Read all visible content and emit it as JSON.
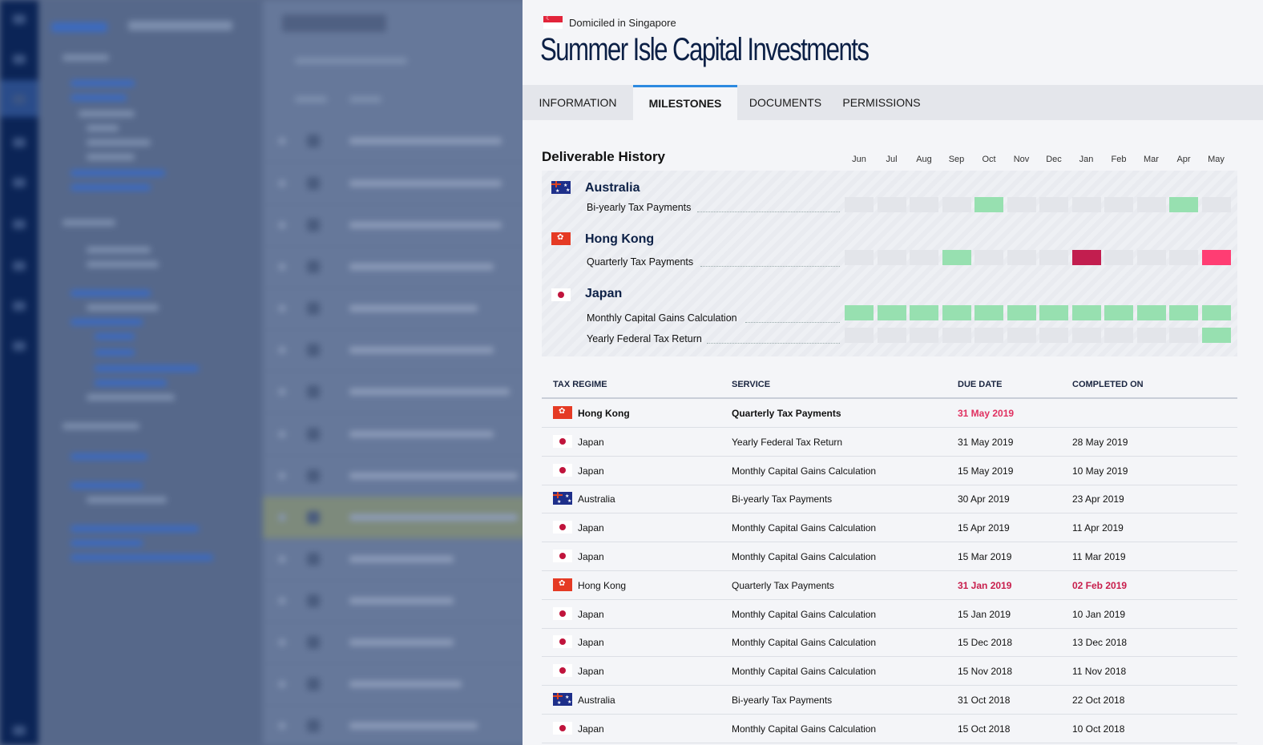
{
  "panel": {
    "domicile": "Domiciled in Singapore",
    "title": "Summer Isle Capital Investments",
    "tabs": [
      {
        "label": "INFORMATION",
        "active": false
      },
      {
        "label": "MILESTONES",
        "active": true
      },
      {
        "label": "DOCUMENTS",
        "active": false
      },
      {
        "label": "PERMISSIONS",
        "active": false
      }
    ]
  },
  "history": {
    "title": "Deliverable History",
    "months": [
      "Jun",
      "Jul",
      "Aug",
      "Sep",
      "Oct",
      "Nov",
      "Dec",
      "Jan",
      "Feb",
      "Mar",
      "Apr",
      "May"
    ],
    "regions": [
      {
        "name": "Australia",
        "flag": "flag-australia",
        "services": [
          {
            "name": "Bi-yearly Tax Payments",
            "status": [
              "empty",
              "empty",
              "empty",
              "empty",
              "green",
              "empty",
              "empty",
              "empty",
              "empty",
              "empty",
              "green",
              "empty"
            ]
          }
        ]
      },
      {
        "name": "Hong Kong",
        "flag": "flag-hong-kong",
        "services": [
          {
            "name": "Quarterly Tax Payments",
            "status": [
              "empty",
              "empty",
              "empty",
              "green",
              "empty",
              "empty",
              "empty",
              "late",
              "empty",
              "empty",
              "empty",
              "overdue"
            ]
          }
        ]
      },
      {
        "name": "Japan",
        "flag": "flag-japan",
        "services": [
          {
            "name": "Monthly Capital Gains Calculation",
            "status": [
              "green",
              "green",
              "green",
              "green",
              "green",
              "green",
              "green",
              "green",
              "green",
              "green",
              "green",
              "green"
            ]
          },
          {
            "name": "Yearly Federal Tax Return",
            "status": [
              "empty",
              "empty",
              "empty",
              "empty",
              "empty",
              "empty",
              "empty",
              "empty",
              "empty",
              "empty",
              "empty",
              "green"
            ]
          }
        ]
      }
    ],
    "colors": {
      "empty": "#e3e5ea",
      "green": "#97e0b0",
      "late": "#c21e4f",
      "overdue": "#ff3d73"
    }
  },
  "table": {
    "headers": [
      "TAX REGIME",
      "SERVICE",
      "DUE DATE",
      "COMPLETED ON"
    ],
    "rows": [
      {
        "regime": "Hong Kong",
        "flag": "hk",
        "service": "Quarterly Tax Payments",
        "due": "31 May 2019",
        "completed": "",
        "style": "pending"
      },
      {
        "regime": "Japan",
        "flag": "jp",
        "service": "Yearly Federal Tax Return",
        "due": "31 May 2019",
        "completed": "28 May 2019",
        "style": "normal"
      },
      {
        "regime": "Japan",
        "flag": "jp",
        "service": "Monthly Capital Gains Calculation",
        "due": "15 May 2019",
        "completed": "10 May 2019",
        "style": "normal"
      },
      {
        "regime": "Australia",
        "flag": "au",
        "service": "Bi-yearly Tax Payments",
        "due": "30 Apr 2019",
        "completed": "23 Apr 2019",
        "style": "normal"
      },
      {
        "regime": "Japan",
        "flag": "jp",
        "service": "Monthly Capital Gains Calculation",
        "due": "15 Apr 2019",
        "completed": "11 Apr 2019",
        "style": "normal"
      },
      {
        "regime": "Japan",
        "flag": "jp",
        "service": "Monthly Capital Gains Calculation",
        "due": "15 Mar 2019",
        "completed": "11 Mar 2019",
        "style": "normal"
      },
      {
        "regime": "Hong Kong",
        "flag": "hk",
        "service": "Quarterly Tax Payments",
        "due": "31 Jan 2019",
        "completed": "02 Feb 2019",
        "style": "late"
      },
      {
        "regime": "Japan",
        "flag": "jp",
        "service": "Monthly Capital Gains Calculation",
        "due": "15 Jan 2019",
        "completed": "10 Jan 2019",
        "style": "normal"
      },
      {
        "regime": "Japan",
        "flag": "jp",
        "service": "Monthly Capital Gains Calculation",
        "due": "15 Dec 2018",
        "completed": "13 Dec 2018",
        "style": "normal"
      },
      {
        "regime": "Japan",
        "flag": "jp",
        "service": "Monthly Capital Gains Calculation",
        "due": "15 Nov 2018",
        "completed": "11 Nov 2018",
        "style": "normal"
      },
      {
        "regime": "Australia",
        "flag": "au",
        "service": "Bi-yearly Tax Payments",
        "due": "31 Oct 2018",
        "completed": "22 Oct 2018",
        "style": "normal"
      },
      {
        "regime": "Japan",
        "flag": "jp",
        "service": "Monthly Capital Gains Calculation",
        "due": "15 Oct 2018",
        "completed": "10 Oct 2018",
        "style": "normal"
      }
    ]
  }
}
